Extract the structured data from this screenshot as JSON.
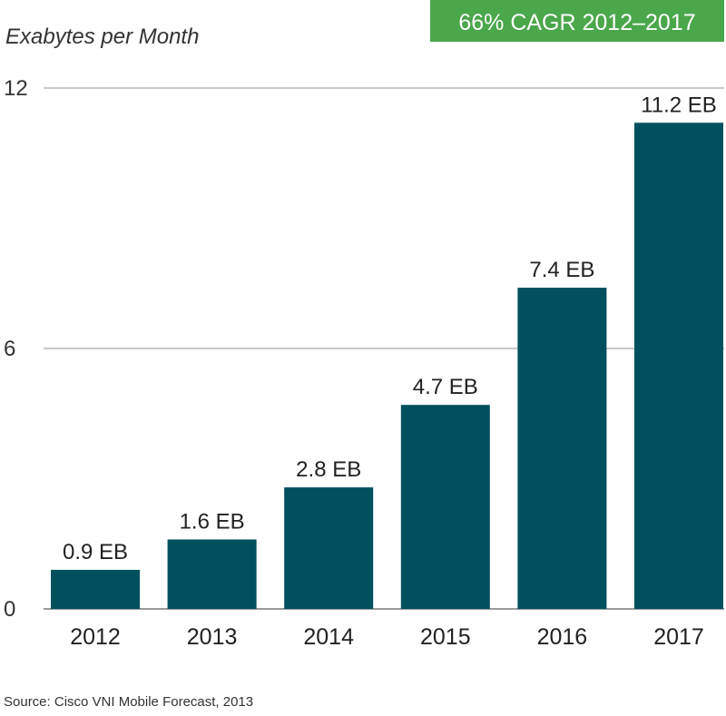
{
  "chart_data": {
    "type": "bar",
    "ylabel": "Exabytes per Month",
    "xlabel": "",
    "categories": [
      "2012",
      "2013",
      "2014",
      "2015",
      "2016",
      "2017"
    ],
    "values": [
      0.9,
      1.6,
      2.8,
      4.7,
      7.4,
      11.2
    ],
    "value_labels": [
      "0.9 EB",
      "1.6 EB",
      "2.8 EB",
      "4.7 EB",
      "7.4 EB",
      "11.2 EB"
    ],
    "ylim": [
      0,
      12
    ],
    "yticks": [
      0,
      6,
      12
    ],
    "grid": true,
    "bar_color": "#00505e",
    "callout": "66% CAGR 2012–2017",
    "callout_color": "#4aa74a",
    "source": "Source: Cisco VNI Mobile Forecast, 2013"
  }
}
